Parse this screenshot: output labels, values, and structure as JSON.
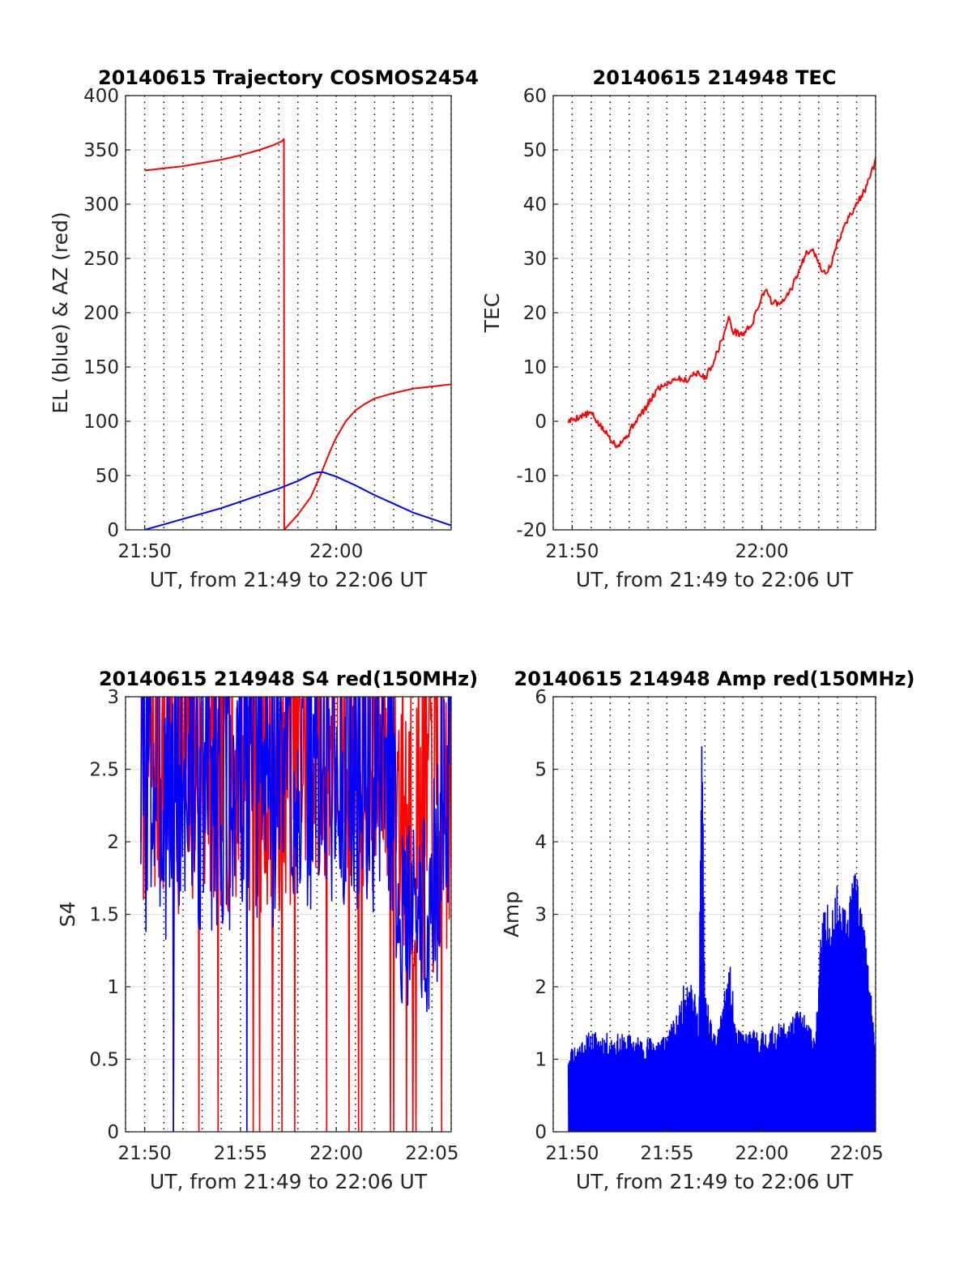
{
  "chart_data": [
    {
      "type": "line",
      "title": "20140615 Trajectory COSMOS2454",
      "xlabel": "UT, from 21:49 to 22:06 UT",
      "ylabel": "EL (blue) & AZ (red)",
      "xlim": [
        "21:49:00",
        "22:06:00"
      ],
      "ylim": [
        0,
        400
      ],
      "xticks": [
        "21:50",
        "22:00"
      ],
      "yticks": [
        0,
        50,
        100,
        150,
        200,
        250,
        300,
        350,
        400
      ],
      "grid": "dotted",
      "series": [
        {
          "color": "#ff0000",
          "role": "AZ",
          "points": [
            [
              "21:50:00",
              331
            ],
            [
              "21:51:00",
              333
            ],
            [
              "21:52:00",
              335
            ],
            [
              "21:53:00",
              338
            ],
            [
              "21:54:00",
              341
            ],
            [
              "21:55:00",
              345
            ],
            [
              "21:56:00",
              350
            ],
            [
              "21:56:40",
              354
            ],
            [
              "21:57:10",
              358
            ],
            [
              "21:57:16",
              360
            ],
            [
              "21:57:17",
              0
            ],
            [
              "21:58:00",
              14
            ],
            [
              "21:58:40",
              30
            ],
            [
              "21:59:10",
              50
            ],
            [
              "21:59:40",
              72
            ],
            [
              "22:00:00",
              85
            ],
            [
              "22:00:30",
              100
            ],
            [
              "22:01:00",
              110
            ],
            [
              "22:01:30",
              116
            ],
            [
              "22:02:00",
              121
            ],
            [
              "22:03:00",
              126
            ],
            [
              "22:04:00",
              130
            ],
            [
              "22:05:00",
              132
            ],
            [
              "22:06:00",
              134
            ]
          ]
        },
        {
          "color": "#0000ff",
          "role": "EL",
          "points": [
            [
              "21:50:00",
              0
            ],
            [
              "21:51:00",
              5
            ],
            [
              "21:52:00",
              10
            ],
            [
              "21:53:00",
              15
            ],
            [
              "21:54:00",
              20
            ],
            [
              "21:55:00",
              26
            ],
            [
              "21:56:00",
              32
            ],
            [
              "21:57:00",
              38
            ],
            [
              "21:58:00",
              45
            ],
            [
              "21:58:40",
              51
            ],
            [
              "21:59:00",
              53
            ],
            [
              "21:59:20",
              53
            ],
            [
              "22:00:00",
              49
            ],
            [
              "22:01:00",
              41
            ],
            [
              "22:02:00",
              32
            ],
            [
              "22:03:00",
              24
            ],
            [
              "22:04:00",
              16
            ],
            [
              "22:05:00",
              10
            ],
            [
              "22:06:00",
              4
            ]
          ]
        }
      ]
    },
    {
      "type": "line",
      "title": "20140615 214948 TEC",
      "xlabel": "UT, from 21:49 to 22:06 UT",
      "ylabel": "TEC",
      "xlim": [
        "21:49:00",
        "22:06:00"
      ],
      "ylim": [
        -20,
        60
      ],
      "xticks": [
        "21:50",
        "22:00"
      ],
      "yticks": [
        -20,
        -10,
        0,
        10,
        20,
        30,
        40,
        50,
        60
      ],
      "grid": "dotted",
      "series": [
        {
          "color": "#ff0000",
          "points": [
            [
              "21:49:48",
              0
            ],
            [
              "21:50:30",
              1
            ],
            [
              "21:51:00",
              1.5
            ],
            [
              "21:51:30",
              -1
            ],
            [
              "21:52:00",
              -3
            ],
            [
              "21:52:20",
              -4.5
            ],
            [
              "21:52:50",
              -3
            ],
            [
              "21:53:20",
              0
            ],
            [
              "21:54:00",
              3
            ],
            [
              "21:54:30",
              6
            ],
            [
              "21:55:00",
              7
            ],
            [
              "21:55:30",
              8
            ],
            [
              "21:56:00",
              7.5
            ],
            [
              "21:56:30",
              9
            ],
            [
              "21:57:00",
              8
            ],
            [
              "21:57:20",
              10
            ],
            [
              "21:57:40",
              13
            ],
            [
              "21:58:00",
              16
            ],
            [
              "21:58:15",
              19
            ],
            [
              "21:58:30",
              16.5
            ],
            [
              "21:59:00",
              16
            ],
            [
              "21:59:30",
              18
            ],
            [
              "22:00:00",
              23
            ],
            [
              "22:00:15",
              24.5
            ],
            [
              "22:00:30",
              22
            ],
            [
              "22:01:00",
              21.5
            ],
            [
              "22:01:30",
              24
            ],
            [
              "22:02:00",
              28
            ],
            [
              "22:02:20",
              31
            ],
            [
              "22:02:40",
              32
            ],
            [
              "22:03:00",
              29
            ],
            [
              "22:03:20",
              27
            ],
            [
              "22:03:40",
              29
            ],
            [
              "22:04:00",
              33
            ],
            [
              "22:04:30",
              37
            ],
            [
              "22:05:00",
              40
            ],
            [
              "22:05:30",
              43
            ],
            [
              "22:06:00",
              48
            ]
          ]
        }
      ]
    },
    {
      "type": "line",
      "title": "20140615 214948 S4 red(150MHz)",
      "xlabel": "UT, from 21:49 to 22:06 UT",
      "ylabel": "S4",
      "xlim": [
        "21:49:00",
        "22:06:00"
      ],
      "ylim": [
        0,
        3
      ],
      "xticks": [
        "21:50",
        "21:55",
        "22:00",
        "22:05"
      ],
      "yticks": [
        0,
        0.5,
        1,
        1.5,
        2,
        2.5,
        3
      ],
      "grid": "dotted",
      "series": [
        {
          "color": "#ff0000",
          "seed": 7,
          "segments": [
            [
              "21:49:48",
              1.5,
              3
            ],
            [
              "21:57:00",
              1.5,
              3
            ],
            [
              "22:00:00",
              1.8,
              3
            ],
            [
              "22:03:00",
              1.5,
              3
            ],
            [
              "22:03:30",
              1.0,
              3
            ],
            [
              "22:06:00",
              1.0,
              3
            ]
          ],
          "dropouts": [
            "21:51:30",
            "21:52:50",
            "21:53:50",
            "21:55:40",
            "21:56:00",
            "21:56:40",
            "21:57:10",
            "21:57:50",
            "21:59:30",
            "22:00:40",
            "22:01:10",
            "22:01:20",
            "22:02:50",
            "22:03:00",
            "22:03:40",
            "22:04:00",
            "22:04:10",
            "22:05:30"
          ]
        },
        {
          "color": "#0000ff",
          "seed": 3,
          "segments": [
            [
              "21:49:48",
              1.3,
              3
            ],
            [
              "21:57:00",
              1.4,
              3
            ],
            [
              "22:03:00",
              1.5,
              3
            ],
            [
              "22:03:10",
              0.9,
              1.5
            ],
            [
              "22:05:00",
              0.8,
              1.6
            ],
            [
              "22:05:30",
              1.2,
              3
            ],
            [
              "22:06:00",
              1.2,
              3
            ]
          ],
          "dropouts": [
            "21:51:30",
            "21:55:20"
          ]
        }
      ]
    },
    {
      "type": "line",
      "title": "20140615 214948 Amp red(150MHz)",
      "xlabel": "UT, from 21:49 to 22:06 UT",
      "ylabel": "Amp",
      "xlim": [
        "21:49:00",
        "22:06:00"
      ],
      "ylim": [
        0,
        6
      ],
      "xticks": [
        "21:50",
        "21:55",
        "22:00",
        "22:05"
      ],
      "yticks": [
        0,
        1,
        2,
        3,
        4,
        5,
        6
      ],
      "grid": "dotted",
      "series": [
        {
          "color": "#0000ff",
          "seed": 11,
          "envelope": [
            [
              "21:49:48",
              1.15
            ],
            [
              "21:51:00",
              1.4
            ],
            [
              "21:52:00",
              1.35
            ],
            [
              "21:53:00",
              1.35
            ],
            [
              "21:54:00",
              1.3
            ],
            [
              "21:55:00",
              1.4
            ],
            [
              "21:55:30",
              1.6
            ],
            [
              "21:56:10",
              2.35
            ],
            [
              "21:56:40",
              1.6
            ],
            [
              "21:56:50",
              5.9
            ],
            [
              "21:57:00",
              2.0
            ],
            [
              "21:57:30",
              1.3
            ],
            [
              "21:58:20",
              2.3
            ],
            [
              "21:58:40",
              1.4
            ],
            [
              "22:00:00",
              1.4
            ],
            [
              "22:01:00",
              1.5
            ],
            [
              "22:02:00",
              1.7
            ],
            [
              "22:02:50",
              1.4
            ],
            [
              "22:03:10",
              3.0
            ],
            [
              "22:04:00",
              3.4
            ],
            [
              "22:05:00",
              3.6
            ],
            [
              "22:05:30",
              2.8
            ],
            [
              "22:06:00",
              1.1
            ]
          ]
        }
      ]
    }
  ]
}
